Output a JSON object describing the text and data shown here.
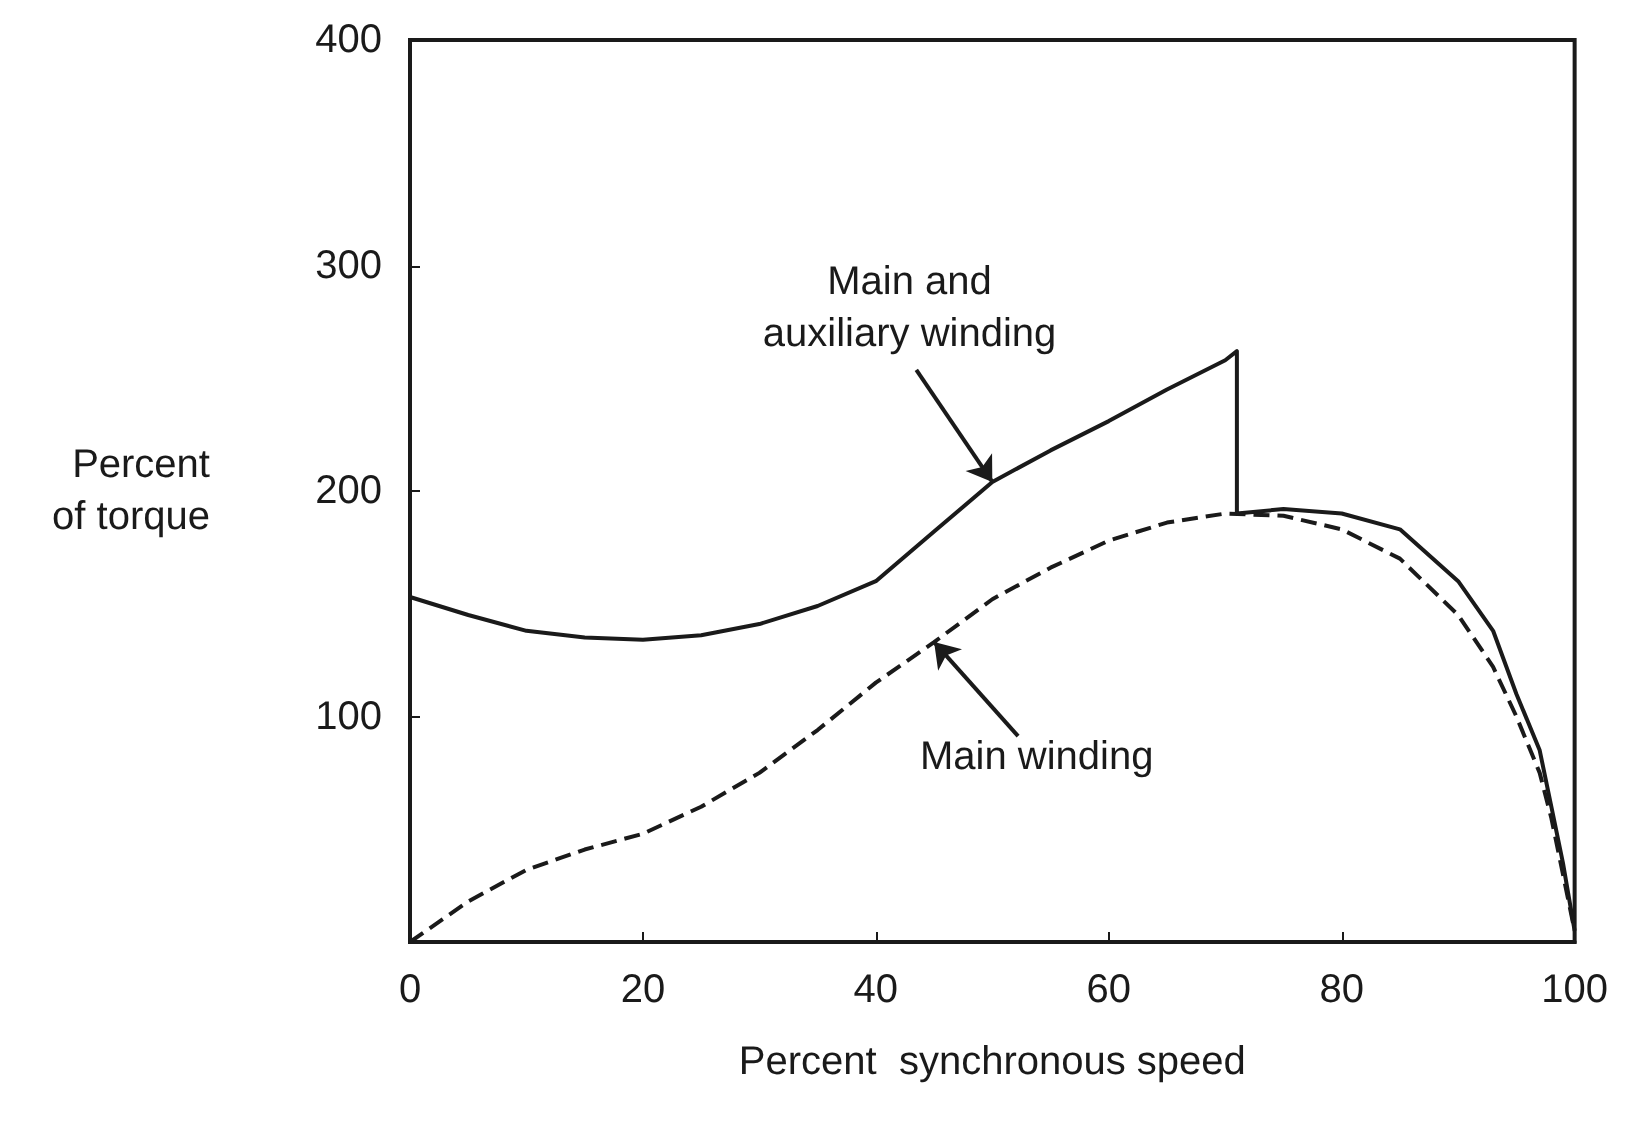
{
  "chart_data": {
    "type": "line",
    "xlabel": "Percent  synchronous speed",
    "ylabel": "Percent\nof torque",
    "xlim": [
      0,
      100
    ],
    "xticks": [
      0,
      20,
      40,
      60,
      80,
      100
    ],
    "ylim": [
      0,
      400
    ],
    "yticks": [
      100,
      200,
      300,
      400
    ],
    "grid": false,
    "marker": "none",
    "series": [
      {
        "color": "#1a1a1a",
        "line_style": "solid",
        "x": [
          0,
          5,
          10,
          15,
          20,
          25,
          30,
          35,
          40,
          45,
          50,
          55,
          60,
          65,
          70,
          71,
          71,
          75,
          80,
          85,
          90,
          93,
          95,
          97,
          98,
          99,
          100
        ],
        "values": [
          153,
          145,
          138,
          135,
          134,
          136,
          141,
          149,
          160,
          182,
          204,
          218,
          231,
          245,
          258,
          262,
          190,
          192,
          190,
          183,
          160,
          138,
          110,
          85,
          60,
          35,
          5
        ]
      },
      {
        "color": "#1a1a1a",
        "line_style": "dashed",
        "x": [
          0,
          5,
          10,
          15,
          20,
          25,
          30,
          35,
          40,
          45,
          50,
          55,
          60,
          65,
          70,
          75,
          80,
          85,
          90,
          93,
          95,
          97,
          98,
          99,
          100
        ],
        "values": [
          0,
          18,
          32,
          41,
          48,
          60,
          75,
          94,
          115,
          133,
          152,
          166,
          178,
          186,
          190,
          189,
          183,
          170,
          145,
          122,
          100,
          75,
          55,
          30,
          5
        ]
      }
    ],
    "annotations": [
      {
        "text": "Main and\nauxiliary winding",
        "x": 50,
        "y": 204
      },
      {
        "text": "Main winding",
        "x": 45,
        "y": 133
      }
    ]
  }
}
